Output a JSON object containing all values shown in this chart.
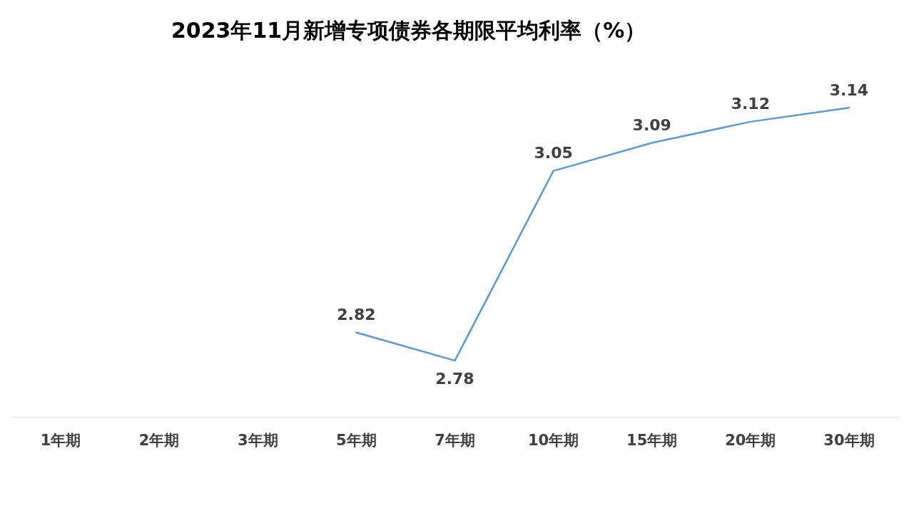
{
  "chart_data": {
    "type": "line",
    "title": "2023年11月新增专项债券各期限平均利率（%）",
    "categories": [
      "1年期",
      "2年期",
      "3年期",
      "5年期",
      "7年期",
      "10年期",
      "15年期",
      "20年期",
      "30年期"
    ],
    "series": [
      {
        "color": "#5b9bd5",
        "values": [
          null,
          null,
          null,
          2.82,
          2.78,
          3.05,
          3.09,
          3.12,
          3.14
        ]
      }
    ],
    "tick_labels": "x",
    "grid": false,
    "marker": "none",
    "line_style": "solid",
    "data_labels": true
  }
}
